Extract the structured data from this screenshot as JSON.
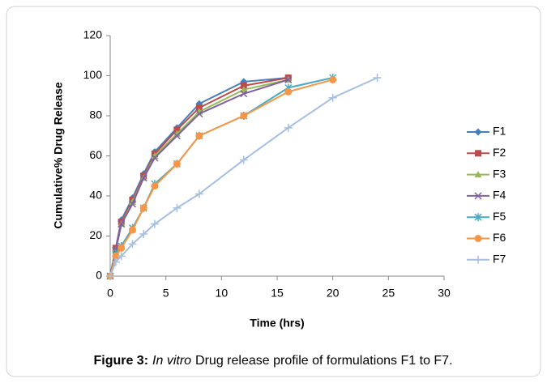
{
  "chart_data": {
    "type": "line",
    "xlabel": "Time (hrs)",
    "ylabel": "Cumulative% Drug Release",
    "caption": {
      "label": "Figure 3:",
      "emphasis": "In vitro",
      "text": "Drug release profile of formulations F1 to F7."
    },
    "x": [
      0,
      0.5,
      1,
      2,
      3,
      4,
      6,
      8,
      12,
      16,
      20,
      24
    ],
    "xlim": [
      0,
      30
    ],
    "xticks": [
      0,
      5,
      10,
      15,
      20,
      25,
      30
    ],
    "ylim": [
      0,
      120
    ],
    "yticks": [
      0,
      20,
      40,
      60,
      80,
      100,
      120
    ],
    "legend": "right",
    "series": [
      {
        "name": "F1",
        "color": "#4a7ebb",
        "marker": "diamond",
        "values": [
          0,
          14,
          28,
          39,
          51,
          62,
          74,
          86,
          97,
          99,
          null,
          null
        ]
      },
      {
        "name": "F2",
        "color": "#be4b48",
        "marker": "square",
        "values": [
          0,
          14,
          27,
          38,
          50,
          61,
          73,
          84,
          95,
          99,
          null,
          null
        ]
      },
      {
        "name": "F3",
        "color": "#98b954",
        "marker": "triangle",
        "values": [
          0,
          13,
          26,
          37,
          49,
          60,
          71,
          82,
          93,
          98,
          null,
          null
        ]
      },
      {
        "name": "F4",
        "color": "#7d60a0",
        "marker": "x",
        "values": [
          0,
          13,
          26,
          36,
          49,
          59,
          70,
          81,
          91,
          98,
          null,
          null
        ]
      },
      {
        "name": "F5",
        "color": "#46aac5",
        "marker": "star",
        "values": [
          0,
          11,
          15,
          24,
          34,
          46,
          56,
          70,
          80,
          94,
          99,
          null
        ]
      },
      {
        "name": "F6",
        "color": "#f79646",
        "marker": "circle",
        "values": [
          0,
          10,
          14,
          23,
          34,
          45,
          56,
          70,
          80,
          92,
          98,
          null
        ]
      },
      {
        "name": "F7",
        "color": "#a5bfe0",
        "marker": "plus",
        "values": [
          0,
          7,
          10,
          16,
          21,
          26,
          34,
          41,
          58,
          74,
          89,
          99
        ]
      }
    ]
  }
}
